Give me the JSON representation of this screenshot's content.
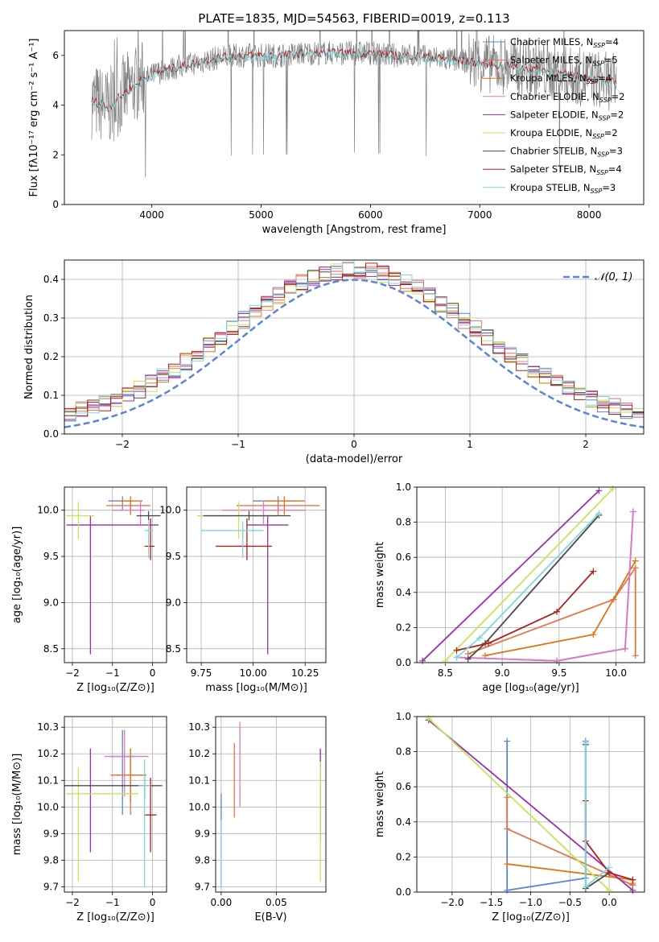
{
  "figure_title": "PLATE=1835, MJD=54563, FIBERID=0019, z=0.113",
  "colors": {
    "grid": "#b0b0b0",
    "spectrum": "#808080",
    "normal_curve": "#5b84d6"
  },
  "model_series": [
    {
      "name": "Chabrier MILES, N_SSP=4",
      "label_main": "Chabrier MILES, N",
      "label_sub": "SSP",
      "label_tail": "=4",
      "color": "#5b84d6"
    },
    {
      "name": "Salpeter MILES, N_SSP=5",
      "label_main": "Salpeter MILES, N",
      "label_sub": "SSP",
      "label_tail": "=5",
      "color": "#e8734a"
    },
    {
      "name": "Kroupa MILES, N_SSP=4",
      "label_main": "Kroupa MILES, N",
      "label_sub": "SSP",
      "label_tail": "=4",
      "color": "#e0721a"
    },
    {
      "name": "Chabrier ELODIE, N_SSP=2",
      "label_main": "Chabrier ELODIE, N",
      "label_sub": "SSP",
      "label_tail": "=2",
      "color": "#e377c2"
    },
    {
      "name": "Salpeter ELODIE, N_SSP=2",
      "label_main": "Salpeter ELODIE, N",
      "label_sub": "SSP",
      "label_tail": "=2",
      "color": "#9a2fb0"
    },
    {
      "name": "Kroupa ELODIE, N_SSP=2",
      "label_main": "Kroupa ELODIE, N",
      "label_sub": "SSP",
      "label_tail": "=2",
      "color": "#c7e35a"
    },
    {
      "name": "Chabrier STELIB, N_SSP=3",
      "label_main": "Chabrier STELIB, N",
      "label_sub": "SSP",
      "label_tail": "=3",
      "color": "#4a4a4a"
    },
    {
      "name": "Salpeter STELIB, N_SSP=4",
      "label_main": "Salpeter STELIB, N",
      "label_sub": "SSP",
      "label_tail": "=4",
      "color": "#b01e1e"
    },
    {
      "name": "Kroupa STELIB, N_SSP=3",
      "label_main": "Kroupa STELIB, N",
      "label_sub": "SSP",
      "label_tail": "=3",
      "color": "#7fd6dc"
    }
  ],
  "chart_data": [
    {
      "id": "spectrum",
      "type": "line",
      "xlabel": "wavelength [Angstrom, rest frame]",
      "ylabel": "Flux [fλ10⁻¹⁷ erg cm⁻² s⁻¹ A⁻¹]",
      "xlim": [
        3200,
        8500
      ],
      "ylim": [
        0,
        7
      ],
      "xticks": [
        4000,
        5000,
        6000,
        7000,
        8000
      ],
      "yticks": [
        0,
        2,
        4,
        6
      ],
      "legend": "right",
      "continuum": {
        "x": [
          3450,
          3600,
          3750,
          3900,
          4050,
          4200,
          4400,
          4600,
          4800,
          5000,
          5200,
          5400,
          5600,
          5800,
          6000,
          6200,
          6400,
          6600,
          6800,
          7000,
          7200,
          7400,
          7600,
          7800,
          8000,
          8250
        ],
        "y": [
          4.2,
          3.9,
          4.5,
          5.0,
          5.3,
          5.5,
          5.7,
          5.9,
          6.0,
          6.0,
          6.0,
          6.1,
          6.1,
          6.1,
          6.1,
          6.0,
          6.0,
          5.9,
          5.8,
          5.7,
          5.6,
          5.5,
          5.4,
          5.2,
          5.1,
          4.9
        ]
      }
    },
    {
      "id": "residuals",
      "type": "histogram",
      "xlabel": "(data-model)/error",
      "ylabel": "Normed distribution",
      "xlim": [
        -2.5,
        2.5
      ],
      "ylim": [
        0,
        0.45
      ],
      "xticks": [
        -2,
        -1,
        0,
        1,
        2
      ],
      "yticks": [
        0.0,
        0.1,
        0.2,
        0.3,
        0.4
      ],
      "legend": "top-right",
      "legend_label": "𝒩(0, 1)",
      "bin_width": 0.1,
      "reference_curve": "normal(0,1)"
    },
    {
      "id": "age_vs_Z",
      "type": "scatter",
      "xlabel": "Z [log₁₀(Z/Z⊙)]",
      "ylabel": "age  [log₁₀(age/yr)]",
      "xlim": [
        -2.2,
        0.35
      ],
      "ylim": [
        8.35,
        10.25
      ],
      "xticks": [
        -2,
        -1,
        0
      ],
      "yticks": [
        8.5,
        9.0,
        9.5,
        10.0
      ],
      "points": [
        {
          "series": 0,
          "x": -0.75,
          "y": 10.1,
          "xerr": [
            0.35,
            0.25
          ],
          "yerr": [
            0.1,
            0.05
          ]
        },
        {
          "series": 1,
          "x": -0.55,
          "y": 10.05,
          "xerr": [
            0.6,
            0.5
          ],
          "yerr": [
            0.1,
            0.05
          ]
        },
        {
          "series": 2,
          "x": -0.55,
          "y": 10.1,
          "xerr": [
            0.3,
            0.3
          ],
          "yerr": [
            0.15,
            0.05
          ]
        },
        {
          "series": 3,
          "x": -0.3,
          "y": 10.0,
          "xerr": [
            0.7,
            0.1
          ],
          "yerr": [
            0.15,
            0.1
          ]
        },
        {
          "series": 4,
          "x": -1.55,
          "y": 9.84,
          "xerr": [
            0.6,
            1.7
          ],
          "yerr": [
            1.4,
            0.1
          ]
        },
        {
          "series": 5,
          "x": -1.85,
          "y": 9.94,
          "xerr": [
            0.3,
            0.4
          ],
          "yerr": [
            0.25,
            0.15
          ]
        },
        {
          "series": 6,
          "x": -0.1,
          "y": 9.94,
          "xerr": [
            0.3,
            0.3
          ],
          "yerr": [
            0.05,
            0.05
          ]
        },
        {
          "series": 7,
          "x": -0.05,
          "y": 9.61,
          "xerr": [
            0.15,
            0.1
          ],
          "yerr": [
            0.15,
            0.3
          ]
        },
        {
          "series": 8,
          "x": -0.1,
          "y": 9.78,
          "xerr": [
            0.1,
            0.1
          ],
          "yerr": [
            0.3,
            0.1
          ]
        }
      ]
    },
    {
      "id": "age_vs_mass",
      "type": "scatter",
      "xlabel": "mass [log₁₀(M/M⊙)]",
      "ylabel": "",
      "xlim": [
        9.68,
        10.35
      ],
      "ylim": [
        8.35,
        10.25
      ],
      "xticks": [
        9.75,
        10.0,
        10.25
      ],
      "yticks": [
        8.5,
        9.0,
        9.5,
        10.0
      ],
      "points": [
        {
          "series": 0,
          "x": 10.12,
          "y": 10.1,
          "xerr": [
            0.12,
            0.1
          ],
          "yerr": [
            0.1,
            0.05
          ]
        },
        {
          "series": 1,
          "x": 10.12,
          "y": 10.05,
          "xerr": [
            0.2,
            0.2
          ],
          "yerr": [
            0.1,
            0.05
          ]
        },
        {
          "series": 2,
          "x": 10.15,
          "y": 10.1,
          "xerr": [
            0.1,
            0.1
          ],
          "yerr": [
            0.15,
            0.05
          ]
        },
        {
          "series": 3,
          "x": 10.05,
          "y": 10.0,
          "xerr": [
            0.2,
            0.2
          ],
          "yerr": [
            0.15,
            0.1
          ]
        },
        {
          "series": 4,
          "x": 10.07,
          "y": 9.84,
          "xerr": [
            0.1,
            0.1
          ],
          "yerr": [
            1.4,
            0.1
          ]
        },
        {
          "series": 5,
          "x": 9.93,
          "y": 9.94,
          "xerr": [
            0.2,
            0.2
          ],
          "yerr": [
            0.25,
            0.15
          ]
        },
        {
          "series": 6,
          "x": 9.98,
          "y": 9.94,
          "xerr": [
            0.22,
            0.2
          ],
          "yerr": [
            0.05,
            0.05
          ]
        },
        {
          "series": 7,
          "x": 9.97,
          "y": 9.61,
          "xerr": [
            0.15,
            0.12
          ],
          "yerr": [
            0.15,
            0.3
          ]
        },
        {
          "series": 8,
          "x": 9.95,
          "y": 9.78,
          "xerr": [
            0.2,
            0.1
          ],
          "yerr": [
            0.3,
            0.1
          ]
        }
      ]
    },
    {
      "id": "weight_vs_age",
      "type": "line",
      "xlabel": "age  [log₁₀(age/yr)]",
      "ylabel": "mass weight",
      "xlim": [
        8.25,
        10.25
      ],
      "ylim": [
        0,
        1
      ],
      "xticks": [
        8.5,
        9.0,
        9.5,
        10.0
      ],
      "yticks": [
        0.0,
        0.2,
        0.4,
        0.6,
        0.8,
        1.0
      ],
      "series": [
        {
          "series": 0,
          "x": [
            8.6,
            9.48,
            10.08,
            10.15
          ],
          "y": [
            0.03,
            0.01,
            0.08,
            0.86
          ]
        },
        {
          "series": 1,
          "x": [
            8.7,
            9.98,
            10.17,
            10.17
          ],
          "y": [
            0.05,
            0.36,
            0.54,
            0.04
          ]
        },
        {
          "series": 2,
          "x": [
            8.85,
            9.8,
            10.17
          ],
          "y": [
            0.04,
            0.16,
            0.58
          ]
        },
        {
          "series": 3,
          "x": [
            8.6,
            9.48,
            10.08,
            10.15
          ],
          "y": [
            0.03,
            0.01,
            0.08,
            0.86
          ]
        },
        {
          "series": 4,
          "x": [
            8.3,
            9.85
          ],
          "y": [
            0.01,
            0.98
          ]
        },
        {
          "series": 5,
          "x": [
            8.5,
            9.97
          ],
          "y": [
            0.01,
            0.99
          ]
        },
        {
          "series": 6,
          "x": [
            8.7,
            8.85,
            9.85
          ],
          "y": [
            0.02,
            0.11,
            0.84
          ]
        },
        {
          "series": 7,
          "x": [
            8.6,
            8.88,
            9.48,
            9.8
          ],
          "y": [
            0.07,
            0.11,
            0.29,
            0.52
          ]
        },
        {
          "series": 8,
          "x": [
            8.6,
            8.8,
            9.85
          ],
          "y": [
            0.03,
            0.14,
            0.85
          ]
        }
      ]
    },
    {
      "id": "mass_vs_Z",
      "type": "scatter",
      "xlabel": "Z [log₁₀(Z/Z⊙)]",
      "ylabel": "mass [log₁₀(M/M⊙)]",
      "xlim": [
        -2.2,
        0.35
      ],
      "ylim": [
        9.68,
        10.34
      ],
      "xticks": [
        -2,
        -1,
        0
      ],
      "yticks": [
        9.7,
        9.8,
        9.9,
        10.0,
        10.1,
        10.2,
        10.3
      ],
      "points": [
        {
          "series": 0,
          "x": -0.75,
          "y": 10.19,
          "xerr": [
            0.3,
            0.3
          ],
          "yerr": [
            0.22,
            0.1
          ]
        },
        {
          "series": 1,
          "x": -0.55,
          "y": 10.12,
          "xerr": [
            0.5,
            0.4
          ],
          "yerr": [
            0.15,
            0.1
          ]
        },
        {
          "series": 2,
          "x": -0.55,
          "y": 10.12,
          "xerr": [
            0.35,
            0.3
          ],
          "yerr": [
            0.1,
            0.1
          ]
        },
        {
          "series": 3,
          "x": -0.7,
          "y": 10.19,
          "xerr": [
            0.5,
            0.6
          ],
          "yerr": [
            0.15,
            0.1
          ]
        },
        {
          "series": 4,
          "x": -1.55,
          "y": 10.08,
          "xerr": [
            0.65,
            1.8
          ],
          "yerr": [
            0.25,
            0.14
          ]
        },
        {
          "series": 5,
          "x": -1.85,
          "y": 10.05,
          "xerr": [
            0.3,
            1.5
          ],
          "yerr": [
            0.33,
            0.1
          ]
        },
        {
          "series": 6,
          "x": -0.2,
          "y": 10.08,
          "xerr": [
            2.0,
            0.4
          ],
          "yerr": [
            0.05,
            0.05
          ]
        },
        {
          "series": 7,
          "x": -0.05,
          "y": 9.97,
          "xerr": [
            0.15,
            0.15
          ],
          "yerr": [
            0.14,
            0.14
          ]
        },
        {
          "series": 8,
          "x": -0.2,
          "y": 10.08,
          "xerr": [
            0.15,
            0.15
          ],
          "yerr": [
            0.38,
            0.1
          ]
        }
      ]
    },
    {
      "id": "mass_vs_EBV",
      "type": "scatter",
      "xlabel": "E(B-V)",
      "ylabel": "",
      "xlim": [
        -0.005,
        0.095
      ],
      "ylim": [
        9.68,
        10.34
      ],
      "xticks": [
        0.0,
        0.05
      ],
      "yticks": [
        9.7,
        9.8,
        9.9,
        10.0,
        10.1,
        10.2,
        10.3
      ],
      "points": [
        {
          "series": 0,
          "x": 0.0,
          "y": 10.0,
          "yerr": [
            0.3,
            0.05
          ]
        },
        {
          "series": 1,
          "x": 0.012,
          "y": 10.1,
          "yerr": [
            0.14,
            0.14
          ]
        },
        {
          "series": 3,
          "x": 0.017,
          "y": 10.15,
          "yerr": [
            0.15,
            0.17
          ]
        },
        {
          "series": 4,
          "x": 0.09,
          "y": 10.05,
          "yerr": [
            0.18,
            0.17
          ]
        },
        {
          "series": 5,
          "x": 0.09,
          "y": 9.97,
          "yerr": [
            0.25,
            0.2
          ]
        },
        {
          "series": 8,
          "x": 0.0,
          "y": 9.85,
          "yerr": [
            0.15,
            0.1
          ]
        }
      ]
    },
    {
      "id": "weight_vs_Z",
      "type": "line",
      "xlabel": "Z [log₁₀(Z/Z⊙)]",
      "ylabel": "mass weight",
      "xlim": [
        -2.45,
        0.45
      ],
      "ylim": [
        0,
        1
      ],
      "xticks": [
        -2.0,
        -1.5,
        -1.0,
        -0.5,
        0.0
      ],
      "yticks": [
        0.0,
        0.2,
        0.4,
        0.6,
        0.8,
        1.0
      ],
      "series": [
        {
          "series": 0,
          "x": [
            -1.3,
            -1.3,
            -0.3,
            -0.3
          ],
          "y": [
            0.86,
            0.01,
            0.08,
            0.86
          ]
        },
        {
          "series": 1,
          "x": [
            -1.3,
            -1.3,
            0.3,
            0.3
          ],
          "y": [
            0.54,
            0.36,
            0.04,
            0.05
          ]
        },
        {
          "series": 2,
          "x": [
            -1.3,
            0.3,
            0.3
          ],
          "y": [
            0.16,
            0.07,
            0.04
          ]
        },
        {
          "series": 4,
          "x": [
            -2.3,
            0.3
          ],
          "y": [
            0.98,
            0.01
          ]
        },
        {
          "series": 5,
          "x": [
            -2.3,
            0.0
          ],
          "y": [
            0.99,
            0.01
          ]
        },
        {
          "series": 6,
          "x": [
            -0.3,
            -0.3,
            0.0
          ],
          "y": [
            0.84,
            0.02,
            0.11
          ]
        },
        {
          "series": 7,
          "x": [
            -0.3,
            -0.3,
            0.0,
            0.3
          ],
          "y": [
            0.52,
            0.29,
            0.11,
            0.07
          ]
        },
        {
          "series": 8,
          "x": [
            -0.3,
            -0.3,
            0.0
          ],
          "y": [
            0.85,
            0.03,
            0.14
          ]
        }
      ]
    }
  ]
}
